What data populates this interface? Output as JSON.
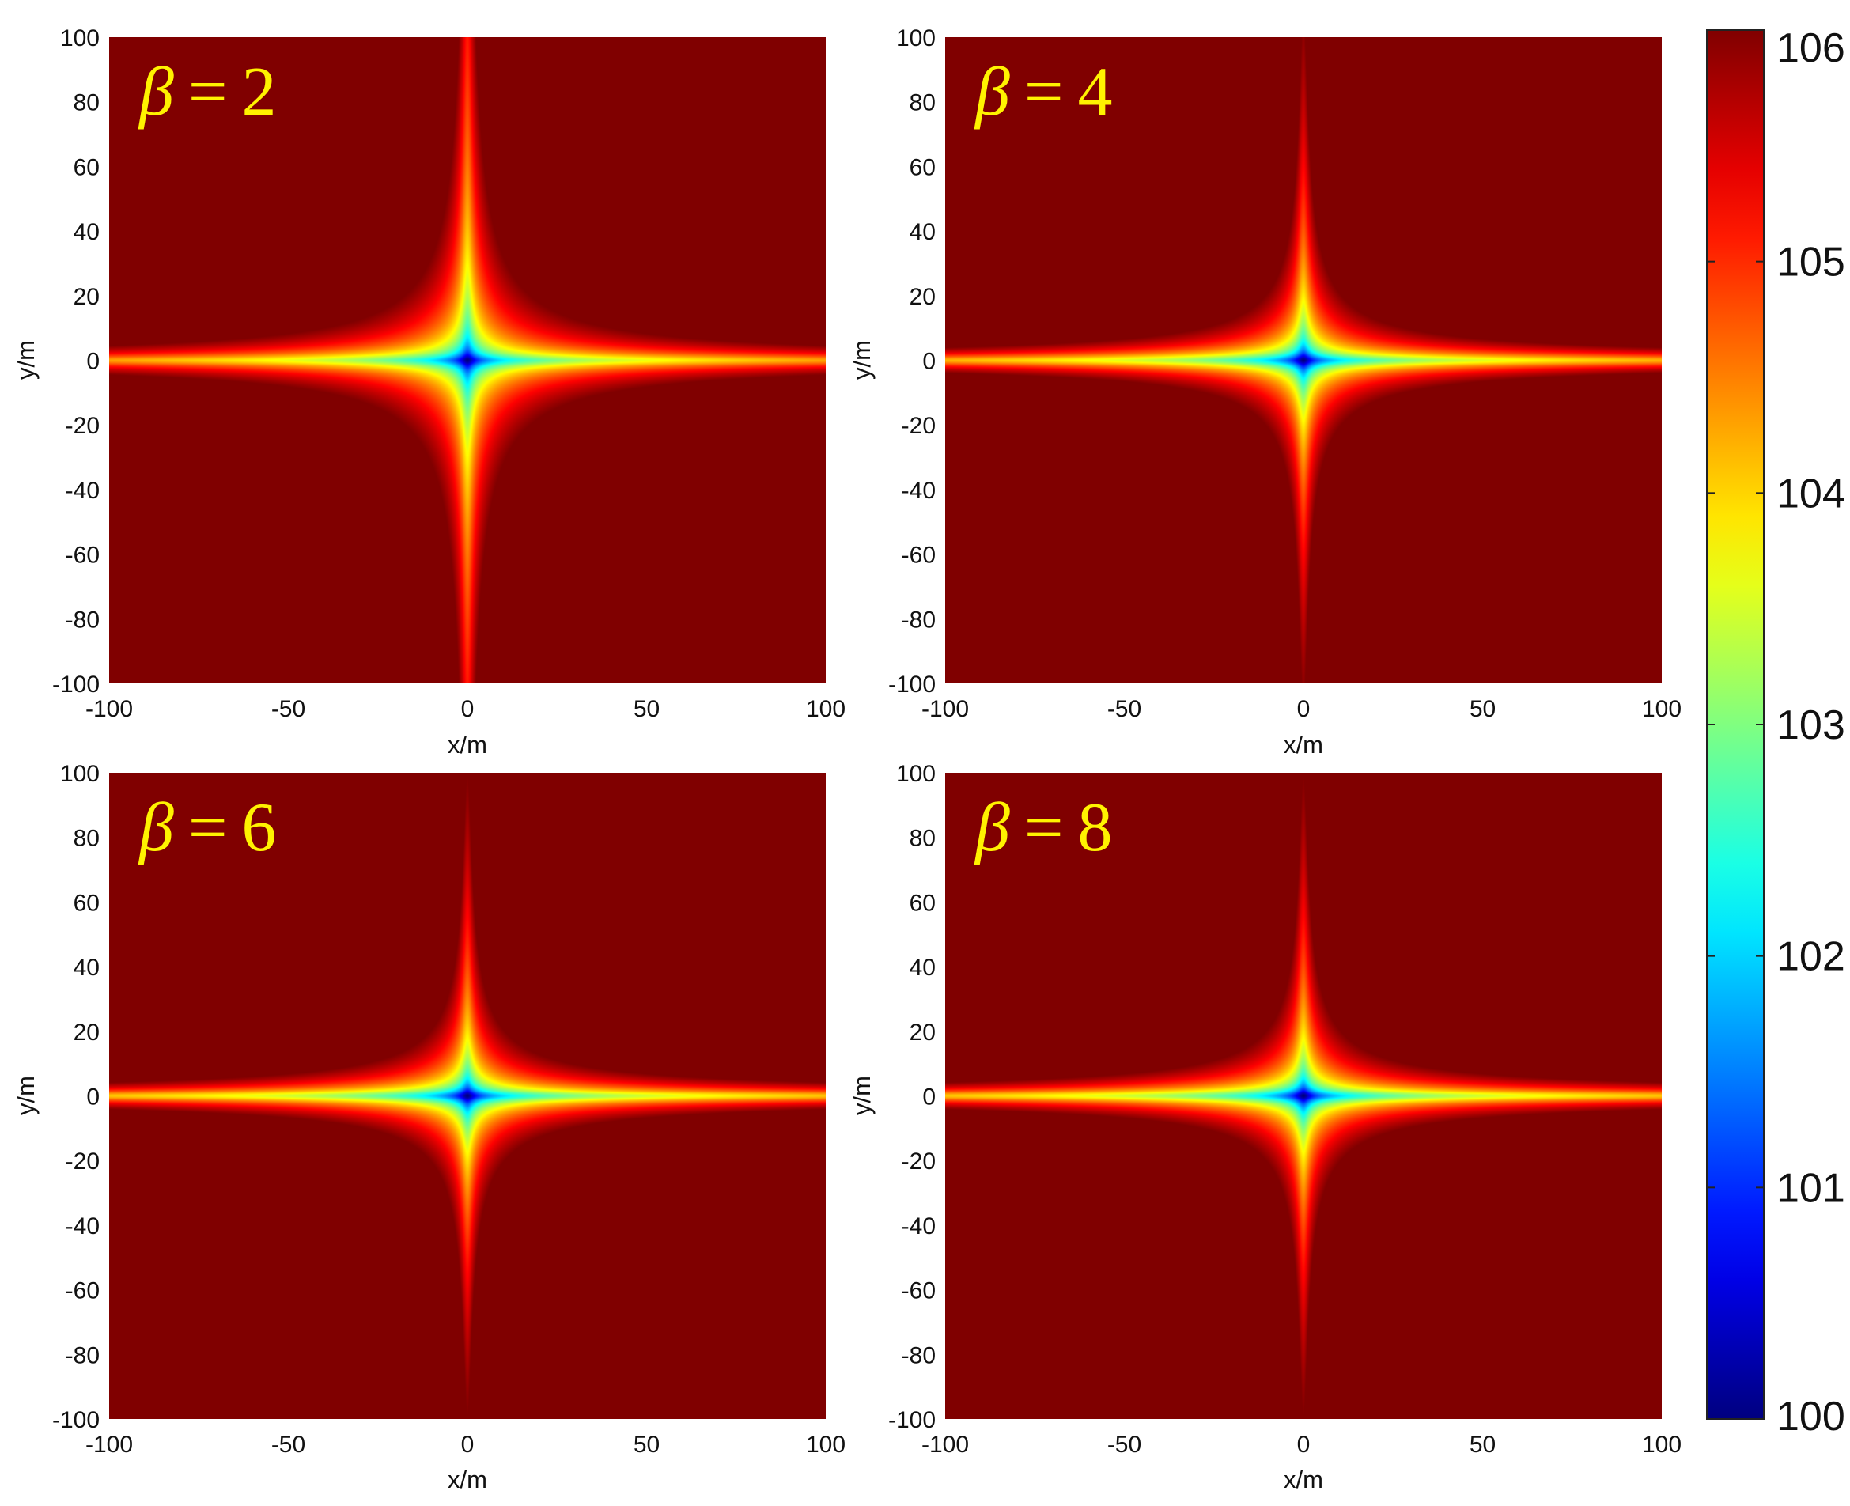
{
  "chart_data": [
    {
      "type": "heatmap",
      "annotation": {
        "symbol": "β",
        "equals": "=",
        "value": "2"
      },
      "xlabel": "x/m",
      "ylabel": "y/m",
      "xlim": [
        -100,
        100
      ],
      "ylim": [
        -100,
        100
      ],
      "xticks": [
        "-100",
        "-50",
        "0",
        "50",
        "100"
      ],
      "yticks": [
        "100",
        "80",
        "60",
        "40",
        "20",
        "0",
        "-20",
        "-40",
        "-60",
        "-80",
        "-100"
      ],
      "beta": 2,
      "center": [
        0,
        0
      ],
      "minimum_value": 100,
      "edge_value_y_max": 105.1,
      "edge_value_x_max": 104.3
    },
    {
      "type": "heatmap",
      "annotation": {
        "symbol": "β",
        "equals": "=",
        "value": "4"
      },
      "xlabel": "x/m",
      "ylabel": "y/m",
      "xlim": [
        -100,
        100
      ],
      "ylim": [
        -100,
        100
      ],
      "xticks": [
        "-100",
        "-50",
        "0",
        "50",
        "100"
      ],
      "yticks": [
        "100",
        "80",
        "60",
        "40",
        "20",
        "0",
        "-20",
        "-40",
        "-60",
        "-80",
        "-100"
      ],
      "beta": 4,
      "center": [
        0,
        0
      ],
      "minimum_value": 100,
      "edge_value_y_max": 105.9,
      "edge_value_x_max": 104.2
    },
    {
      "type": "heatmap",
      "annotation": {
        "symbol": "β",
        "equals": "=",
        "value": "6"
      },
      "xlabel": "x/m",
      "ylabel": "y/m",
      "xlim": [
        -100,
        100
      ],
      "ylim": [
        -100,
        100
      ],
      "xticks": [
        "-100",
        "-50",
        "0",
        "50",
        "100"
      ],
      "yticks": [
        "100",
        "80",
        "60",
        "40",
        "20",
        "0",
        "-20",
        "-40",
        "-60",
        "-80",
        "-100"
      ],
      "beta": 6,
      "center": [
        0,
        0
      ],
      "minimum_value": 100,
      "edge_value_y_max": 106,
      "edge_value_x_max": 104.1
    },
    {
      "type": "heatmap",
      "annotation": {
        "symbol": "β",
        "equals": "=",
        "value": "8"
      },
      "xlabel": "x/m",
      "ylabel": "y/m",
      "xlim": [
        -100,
        100
      ],
      "ylim": [
        -100,
        100
      ],
      "xticks": [
        "-100",
        "-50",
        "0",
        "50",
        "100"
      ],
      "yticks": [
        "100",
        "80",
        "60",
        "40",
        "20",
        "0",
        "-20",
        "-40",
        "-60",
        "-80",
        "-100"
      ],
      "beta": 8,
      "center": [
        0,
        0
      ],
      "minimum_value": 100,
      "edge_value_y_max": 106,
      "edge_value_x_max": 104.1
    }
  ],
  "colorbar": {
    "colormap": "jet",
    "range": [
      100,
      106
    ],
    "ticks": [
      "106",
      "105",
      "104",
      "103",
      "102",
      "101",
      "100"
    ]
  }
}
